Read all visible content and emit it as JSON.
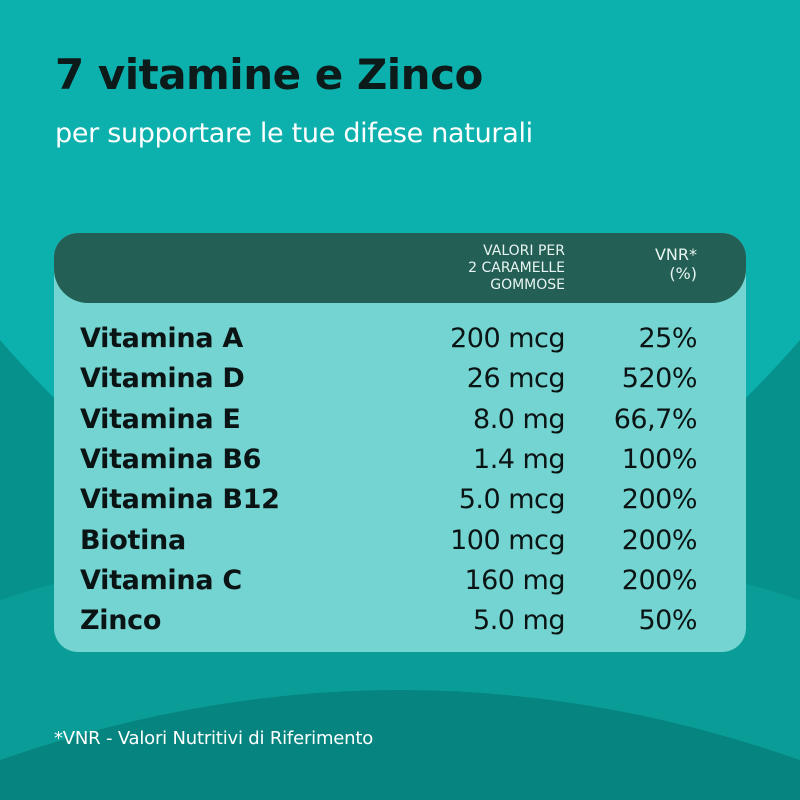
{
  "title": "7 vitamine e Zinco",
  "subtitle": "per supportare le tue difese naturali",
  "table": {
    "header": {
      "amount": "VALORI PER\n2 CARAMELLE\nGOMMOSE",
      "vnr": "VNR*\n(%)"
    },
    "rows": [
      {
        "name": "Vitamina A",
        "amount": "200 mcg",
        "vnr": "25%"
      },
      {
        "name": "Vitamina D",
        "amount": "26 mcg",
        "vnr": "520%"
      },
      {
        "name": "Vitamina E",
        "amount": "8.0 mg",
        "vnr": "66,7%"
      },
      {
        "name": "Vitamina B6",
        "amount": "1.4 mg",
        "vnr": "100%"
      },
      {
        "name": "Vitamina B12",
        "amount": "5.0 mcg",
        "vnr": "200%"
      },
      {
        "name": "Biotina",
        "amount": "100 mcg",
        "vnr": "200%"
      },
      {
        "name": "Vitamina C",
        "amount": "160 mg",
        "vnr": "200%"
      },
      {
        "name": "Zinco",
        "amount": "5.0 mg",
        "vnr": "50%"
      }
    ]
  },
  "footnote": "*VNR - Valori Nutritivi di Riferimento",
  "colors": {
    "background": "#0aaba7",
    "header": "#235f55",
    "table_body": "#74d4d1"
  }
}
